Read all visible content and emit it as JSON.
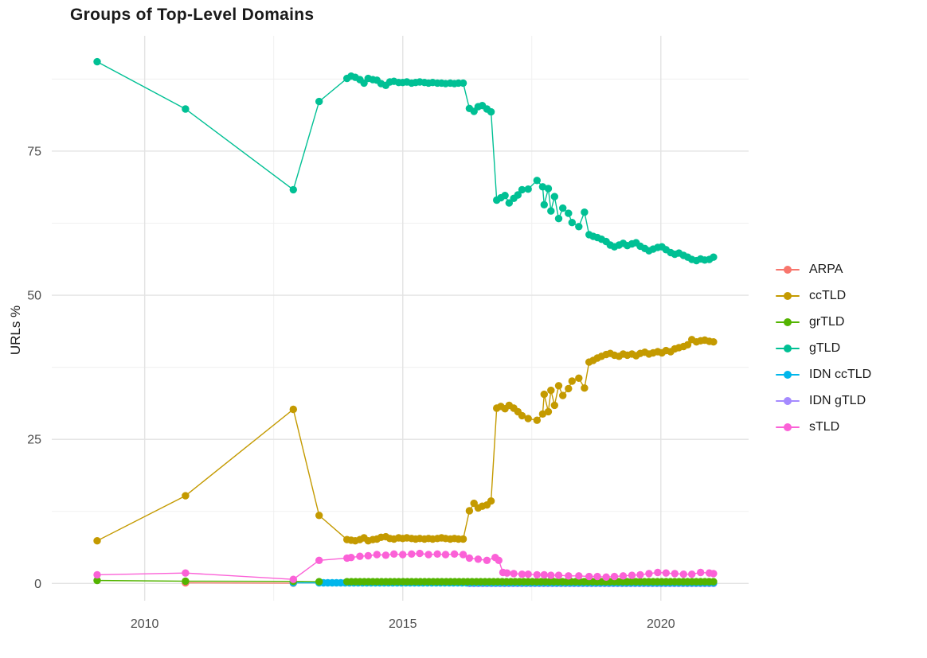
{
  "title": "Groups of Top-Level Domains",
  "y_axis": {
    "label": "URLs %",
    "ticks": [
      "0",
      "25",
      "50",
      "75"
    ],
    "tick_values": [
      0,
      25,
      50,
      75
    ]
  },
  "x_axis": {
    "ticks": [
      "2010",
      "2015",
      "2020"
    ],
    "tick_values": [
      2010,
      2015,
      2020
    ]
  },
  "colors": {
    "grid_major": "#e3e3e3",
    "grid_minor": "#f0f0f0",
    "tick_text": "#4d4d4d",
    "title_text": "#1a1a1a"
  },
  "chart_data": {
    "type": "line",
    "title": "Groups of Top-Level Domains",
    "xlabel": "",
    "ylabel": "URLs %",
    "xlim": [
      2008.2,
      2021.7
    ],
    "ylim": [
      -3,
      95
    ],
    "grid": true,
    "x_major_gridlines": [
      2010,
      2015,
      2020
    ],
    "x_minor_gridlines": [
      2012.5,
      2017.5
    ],
    "y_major_gridlines": [
      0,
      25,
      50,
      75
    ],
    "y_minor_gridlines": [
      12.5,
      37.5,
      62.5,
      87.5
    ],
    "legend_position": "right",
    "point_draw_order": [
      "ARPA",
      "IDN gTLD",
      "IDN ccTLD",
      "grTLD",
      "gTLD",
      "ccTLD",
      "sTLD"
    ],
    "series": [
      {
        "name": "ARPA",
        "color": "#F8766D",
        "points": [
          [
            2010.79,
            0.1
          ],
          [
            2012.88,
            0.05
          ]
        ]
      },
      {
        "name": "ccTLD",
        "color": "#C49A00",
        "points": [
          [
            2009.08,
            7.4
          ],
          [
            2010.79,
            15.2
          ],
          [
            2012.88,
            30.2
          ],
          [
            2013.38,
            11.8
          ],
          [
            2013.92,
            7.6
          ],
          [
            2014.0,
            7.5
          ],
          [
            2014.08,
            7.4
          ],
          [
            2014.17,
            7.6
          ],
          [
            2014.25,
            7.9
          ],
          [
            2014.33,
            7.4
          ],
          [
            2014.42,
            7.6
          ],
          [
            2014.5,
            7.7
          ],
          [
            2014.58,
            8.0
          ],
          [
            2014.67,
            8.1
          ],
          [
            2014.75,
            7.8
          ],
          [
            2014.83,
            7.7
          ],
          [
            2014.92,
            7.9
          ],
          [
            2015.0,
            7.8
          ],
          [
            2015.08,
            7.9
          ],
          [
            2015.17,
            7.8
          ],
          [
            2015.25,
            7.7
          ],
          [
            2015.33,
            7.8
          ],
          [
            2015.42,
            7.7
          ],
          [
            2015.5,
            7.8
          ],
          [
            2015.58,
            7.7
          ],
          [
            2015.67,
            7.8
          ],
          [
            2015.75,
            7.9
          ],
          [
            2015.83,
            7.8
          ],
          [
            2015.92,
            7.7
          ],
          [
            2016.0,
            7.8
          ],
          [
            2016.08,
            7.7
          ],
          [
            2016.17,
            7.7
          ],
          [
            2016.29,
            12.6
          ],
          [
            2016.38,
            13.9
          ],
          [
            2016.46,
            13.1
          ],
          [
            2016.54,
            13.4
          ],
          [
            2016.63,
            13.6
          ],
          [
            2016.71,
            14.3
          ],
          [
            2016.82,
            30.4
          ],
          [
            2016.9,
            30.7
          ],
          [
            2016.98,
            30.3
          ],
          [
            2017.06,
            30.9
          ],
          [
            2017.15,
            30.4
          ],
          [
            2017.23,
            29.8
          ],
          [
            2017.31,
            29.1
          ],
          [
            2017.43,
            28.6
          ],
          [
            2017.6,
            28.3
          ],
          [
            2017.71,
            29.4
          ],
          [
            2017.74,
            32.8
          ],
          [
            2017.82,
            29.8
          ],
          [
            2017.87,
            33.5
          ],
          [
            2017.94,
            30.9
          ],
          [
            2018.02,
            34.3
          ],
          [
            2018.1,
            32.6
          ],
          [
            2018.21,
            33.8
          ],
          [
            2018.28,
            35.1
          ],
          [
            2018.41,
            35.6
          ],
          [
            2018.52,
            33.9
          ],
          [
            2018.61,
            38.4
          ],
          [
            2018.69,
            38.7
          ],
          [
            2018.77,
            39.1
          ],
          [
            2018.85,
            39.4
          ],
          [
            2018.94,
            39.7
          ],
          [
            2019.02,
            39.9
          ],
          [
            2019.1,
            39.6
          ],
          [
            2019.19,
            39.4
          ],
          [
            2019.27,
            39.8
          ],
          [
            2019.35,
            39.6
          ],
          [
            2019.44,
            39.8
          ],
          [
            2019.52,
            39.5
          ],
          [
            2019.6,
            39.9
          ],
          [
            2019.69,
            40.1
          ],
          [
            2019.77,
            39.8
          ],
          [
            2019.85,
            40.0
          ],
          [
            2019.94,
            40.2
          ],
          [
            2020.02,
            40.0
          ],
          [
            2020.1,
            40.4
          ],
          [
            2020.19,
            40.2
          ],
          [
            2020.27,
            40.7
          ],
          [
            2020.35,
            40.9
          ],
          [
            2020.44,
            41.1
          ],
          [
            2020.52,
            41.4
          ],
          [
            2020.6,
            42.3
          ],
          [
            2020.69,
            41.9
          ],
          [
            2020.77,
            42.1
          ],
          [
            2020.85,
            42.2
          ],
          [
            2020.94,
            42.0
          ],
          [
            2021.02,
            41.9
          ]
        ]
      },
      {
        "name": "grTLD",
        "color": "#53B400",
        "points": [
          [
            2009.08,
            0.5
          ],
          [
            2010.79,
            0.4
          ],
          [
            2012.88,
            0.35
          ],
          [
            2013.38,
            0.3
          ]
        ],
        "flat_run": {
          "from": 2013.92,
          "to": 2021.02,
          "n": 86,
          "value": 0.3
        }
      },
      {
        "name": "gTLD",
        "color": "#00C094",
        "points": [
          [
            2009.08,
            90.5
          ],
          [
            2010.79,
            82.3
          ],
          [
            2012.88,
            68.3
          ],
          [
            2013.38,
            83.6
          ],
          [
            2013.92,
            87.6
          ],
          [
            2014.0,
            88.0
          ],
          [
            2014.08,
            87.8
          ],
          [
            2014.17,
            87.4
          ],
          [
            2014.25,
            86.8
          ],
          [
            2014.33,
            87.6
          ],
          [
            2014.42,
            87.4
          ],
          [
            2014.5,
            87.3
          ],
          [
            2014.58,
            86.7
          ],
          [
            2014.67,
            86.4
          ],
          [
            2014.75,
            87.0
          ],
          [
            2014.83,
            87.1
          ],
          [
            2014.92,
            86.9
          ],
          [
            2015.0,
            86.9
          ],
          [
            2015.08,
            87.0
          ],
          [
            2015.17,
            86.8
          ],
          [
            2015.25,
            86.9
          ],
          [
            2015.33,
            87.0
          ],
          [
            2015.42,
            86.9
          ],
          [
            2015.5,
            86.8
          ],
          [
            2015.58,
            86.9
          ],
          [
            2015.67,
            86.8
          ],
          [
            2015.75,
            86.8
          ],
          [
            2015.83,
            86.7
          ],
          [
            2015.92,
            86.8
          ],
          [
            2016.0,
            86.7
          ],
          [
            2016.08,
            86.8
          ],
          [
            2016.17,
            86.8
          ],
          [
            2016.29,
            82.4
          ],
          [
            2016.38,
            81.9
          ],
          [
            2016.46,
            82.7
          ],
          [
            2016.54,
            82.9
          ],
          [
            2016.63,
            82.3
          ],
          [
            2016.71,
            81.8
          ],
          [
            2016.82,
            66.5
          ],
          [
            2016.9,
            66.9
          ],
          [
            2016.98,
            67.3
          ],
          [
            2017.06,
            66.0
          ],
          [
            2017.15,
            66.8
          ],
          [
            2017.23,
            67.4
          ],
          [
            2017.31,
            68.3
          ],
          [
            2017.43,
            68.4
          ],
          [
            2017.6,
            69.9
          ],
          [
            2017.71,
            68.8
          ],
          [
            2017.74,
            65.7
          ],
          [
            2017.82,
            68.5
          ],
          [
            2017.87,
            64.6
          ],
          [
            2017.94,
            67.1
          ],
          [
            2018.02,
            63.3
          ],
          [
            2018.1,
            65.1
          ],
          [
            2018.21,
            64.2
          ],
          [
            2018.28,
            62.6
          ],
          [
            2018.41,
            61.9
          ],
          [
            2018.52,
            64.4
          ],
          [
            2018.61,
            60.5
          ],
          [
            2018.69,
            60.2
          ],
          [
            2018.77,
            60.0
          ],
          [
            2018.85,
            59.7
          ],
          [
            2018.94,
            59.3
          ],
          [
            2019.02,
            58.7
          ],
          [
            2019.1,
            58.4
          ],
          [
            2019.19,
            58.7
          ],
          [
            2019.27,
            59.0
          ],
          [
            2019.35,
            58.6
          ],
          [
            2019.44,
            58.9
          ],
          [
            2019.52,
            59.1
          ],
          [
            2019.6,
            58.5
          ],
          [
            2019.69,
            58.1
          ],
          [
            2019.77,
            57.7
          ],
          [
            2019.85,
            58.0
          ],
          [
            2019.94,
            58.3
          ],
          [
            2020.02,
            58.4
          ],
          [
            2020.1,
            57.9
          ],
          [
            2020.19,
            57.4
          ],
          [
            2020.27,
            57.1
          ],
          [
            2020.35,
            57.3
          ],
          [
            2020.44,
            56.9
          ],
          [
            2020.52,
            56.6
          ],
          [
            2020.6,
            56.2
          ],
          [
            2020.69,
            56.0
          ],
          [
            2020.77,
            56.3
          ],
          [
            2020.85,
            56.1
          ],
          [
            2020.94,
            56.2
          ],
          [
            2021.02,
            56.6
          ]
        ]
      },
      {
        "name": "IDN ccTLD",
        "color": "#00B6EB",
        "points": [
          [
            2012.88,
            0.1
          ]
        ],
        "flat_run": {
          "from": 2013.38,
          "to": 2021.02,
          "n": 92,
          "value": 0.1
        }
      },
      {
        "name": "IDN gTLD",
        "color": "#A58AFF",
        "points": [],
        "flat_run": {
          "from": 2016.29,
          "to": 2021.02,
          "n": 57,
          "value": 0.0
        }
      },
      {
        "name": "sTLD",
        "color": "#FB61D7",
        "points": [
          [
            2009.08,
            1.5
          ],
          [
            2010.79,
            1.8
          ],
          [
            2012.88,
            0.7
          ],
          [
            2013.38,
            4.0
          ],
          [
            2013.92,
            4.4
          ],
          [
            2014.0,
            4.5
          ],
          [
            2014.17,
            4.7
          ],
          [
            2014.33,
            4.8
          ],
          [
            2014.5,
            5.0
          ],
          [
            2014.67,
            4.9
          ],
          [
            2014.83,
            5.1
          ],
          [
            2015.0,
            5.0
          ],
          [
            2015.17,
            5.1
          ],
          [
            2015.33,
            5.2
          ],
          [
            2015.5,
            5.0
          ],
          [
            2015.67,
            5.1
          ],
          [
            2015.83,
            5.0
          ],
          [
            2016.0,
            5.1
          ],
          [
            2016.17,
            5.0
          ],
          [
            2016.29,
            4.4
          ],
          [
            2016.46,
            4.2
          ],
          [
            2016.63,
            4.0
          ],
          [
            2016.79,
            4.5
          ],
          [
            2016.86,
            4.0
          ],
          [
            2016.94,
            1.9
          ],
          [
            2017.02,
            1.8
          ],
          [
            2017.15,
            1.7
          ],
          [
            2017.31,
            1.6
          ],
          [
            2017.43,
            1.6
          ],
          [
            2017.6,
            1.5
          ],
          [
            2017.74,
            1.5
          ],
          [
            2017.87,
            1.4
          ],
          [
            2018.02,
            1.4
          ],
          [
            2018.21,
            1.3
          ],
          [
            2018.41,
            1.3
          ],
          [
            2018.61,
            1.2
          ],
          [
            2018.77,
            1.2
          ],
          [
            2018.94,
            1.1
          ],
          [
            2019.1,
            1.2
          ],
          [
            2019.27,
            1.3
          ],
          [
            2019.44,
            1.4
          ],
          [
            2019.6,
            1.5
          ],
          [
            2019.77,
            1.7
          ],
          [
            2019.94,
            1.9
          ],
          [
            2020.1,
            1.8
          ],
          [
            2020.27,
            1.7
          ],
          [
            2020.44,
            1.6
          ],
          [
            2020.6,
            1.6
          ],
          [
            2020.77,
            1.9
          ],
          [
            2020.94,
            1.8
          ],
          [
            2021.02,
            1.7
          ]
        ]
      }
    ]
  }
}
